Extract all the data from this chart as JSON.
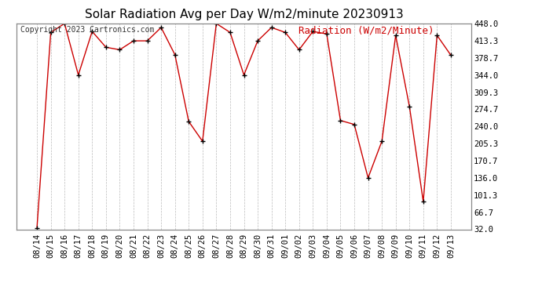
{
  "title": "Solar Radiation Avg per Day W/m2/minute 20230913",
  "copyright_text": "Copyright 2023 Cartronics.com",
  "legend_label": "Radiation (W/m2/Minute)",
  "dates": [
    "08/14",
    "08/15",
    "08/16",
    "08/17",
    "08/18",
    "08/19",
    "08/20",
    "08/21",
    "08/22",
    "08/23",
    "08/24",
    "08/25",
    "08/26",
    "08/27",
    "08/28",
    "08/29",
    "08/30",
    "08/31",
    "09/01",
    "09/02",
    "09/03",
    "09/04",
    "09/05",
    "09/06",
    "09/07",
    "09/08",
    "09/09",
    "09/10",
    "09/11",
    "09/12",
    "09/13"
  ],
  "values": [
    35,
    430,
    448,
    344,
    432,
    400,
    395,
    413,
    413,
    440,
    385,
    250,
    210,
    448,
    430,
    344,
    413,
    440,
    430,
    395,
    432,
    427,
    252,
    244,
    136,
    210,
    424,
    280,
    88,
    424,
    384
  ],
  "y_ticks": [
    32.0,
    66.7,
    101.3,
    136.0,
    170.7,
    205.3,
    240.0,
    274.7,
    309.3,
    344.0,
    378.7,
    413.3,
    448.0
  ],
  "ymin": 32.0,
  "ymax": 448.0,
  "line_color": "#cc0000",
  "marker_color": "#000000",
  "grid_color": "#bbbbbb",
  "bg_color": "#ffffff",
  "title_fontsize": 11,
  "axis_fontsize": 7.5,
  "legend_fontsize": 9,
  "copyright_fontsize": 7
}
